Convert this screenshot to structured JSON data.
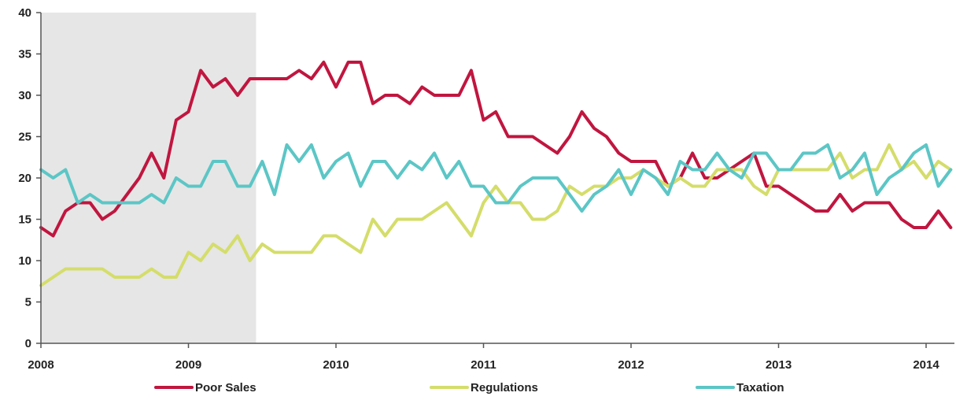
{
  "chart_data": {
    "type": "line",
    "title": "",
    "xlabel": "",
    "ylabel": "",
    "ylim": [
      0,
      40
    ],
    "xlim": [
      "2008-01",
      "2014-03"
    ],
    "grid": false,
    "legend_position": "bottom",
    "yticks": [
      "0",
      "5",
      "10",
      "15",
      "20",
      "25",
      "30",
      "35",
      "40"
    ],
    "xticks": [
      "2008",
      "2009",
      "2010",
      "2011",
      "2012",
      "2013",
      "2014"
    ],
    "shaded_region": {
      "start": "2008-01",
      "end": "2009-06",
      "color": "#e6e6e6"
    },
    "x": [
      "2008-01",
      "2008-02",
      "2008-03",
      "2008-04",
      "2008-05",
      "2008-06",
      "2008-07",
      "2008-08",
      "2008-09",
      "2008-10",
      "2008-11",
      "2008-12",
      "2009-01",
      "2009-02",
      "2009-03",
      "2009-04",
      "2009-05",
      "2009-06",
      "2009-07",
      "2009-08",
      "2009-09",
      "2009-10",
      "2009-11",
      "2009-12",
      "2010-01",
      "2010-02",
      "2010-03",
      "2010-04",
      "2010-05",
      "2010-06",
      "2010-07",
      "2010-08",
      "2010-09",
      "2010-10",
      "2010-11",
      "2010-12",
      "2011-01",
      "2011-02",
      "2011-03",
      "2011-04",
      "2011-05",
      "2011-06",
      "2011-07",
      "2011-08",
      "2011-09",
      "2011-10",
      "2011-11",
      "2011-12",
      "2012-01",
      "2012-02",
      "2012-03",
      "2012-04",
      "2012-05",
      "2012-06",
      "2012-07",
      "2012-08",
      "2012-09",
      "2012-10",
      "2012-11",
      "2012-12",
      "2013-01",
      "2013-02",
      "2013-03",
      "2013-04",
      "2013-05",
      "2013-06",
      "2013-07",
      "2013-08",
      "2013-09",
      "2013-10",
      "2013-11",
      "2013-12",
      "2014-01",
      "2014-02",
      "2014-03"
    ],
    "series": [
      {
        "name": "Poor Sales",
        "color": "#c0163f",
        "values": [
          14,
          13,
          16,
          17,
          17,
          15,
          16,
          18,
          20,
          23,
          20,
          27,
          28,
          33,
          31,
          32,
          30,
          32,
          32,
          32,
          32,
          33,
          32,
          34,
          31,
          34,
          34,
          29,
          30,
          30,
          29,
          31,
          30,
          30,
          30,
          33,
          27,
          28,
          25,
          25,
          25,
          24,
          23,
          25,
          28,
          26,
          25,
          23,
          22,
          22,
          22,
          19,
          20,
          23,
          20,
          20,
          21,
          22,
          23,
          19,
          19,
          18,
          17,
          16,
          16,
          18,
          16,
          17,
          17,
          17,
          15,
          14,
          14,
          16,
          14
        ]
      },
      {
        "name": "Regulations",
        "color": "#d4dd6a",
        "values": [
          7,
          8,
          9,
          9,
          9,
          9,
          8,
          8,
          8,
          9,
          8,
          8,
          11,
          10,
          12,
          11,
          13,
          10,
          12,
          11,
          11,
          11,
          11,
          13,
          13,
          12,
          11,
          15,
          13,
          15,
          15,
          15,
          16,
          17,
          15,
          13,
          17,
          19,
          17,
          17,
          15,
          15,
          16,
          19,
          18,
          19,
          19,
          20,
          20,
          21,
          20,
          19,
          20,
          19,
          19,
          21,
          21,
          21,
          19,
          18,
          21,
          21,
          21,
          21,
          21,
          23,
          20,
          21,
          21,
          24,
          21,
          22,
          20,
          22,
          21
        ]
      },
      {
        "name": "Taxation",
        "color": "#5cc6c6",
        "values": [
          21,
          20,
          21,
          17,
          18,
          17,
          17,
          17,
          17,
          18,
          17,
          20,
          19,
          19,
          22,
          22,
          19,
          19,
          22,
          18,
          24,
          22,
          24,
          20,
          22,
          23,
          19,
          22,
          22,
          20,
          22,
          21,
          23,
          20,
          22,
          19,
          19,
          17,
          17,
          19,
          20,
          20,
          20,
          18,
          16,
          18,
          19,
          21,
          18,
          21,
          20,
          18,
          22,
          21,
          21,
          23,
          21,
          20,
          23,
          23,
          21,
          21,
          23,
          23,
          24,
          20,
          21,
          23,
          18,
          20,
          21,
          23,
          24,
          19,
          21
        ]
      }
    ]
  }
}
